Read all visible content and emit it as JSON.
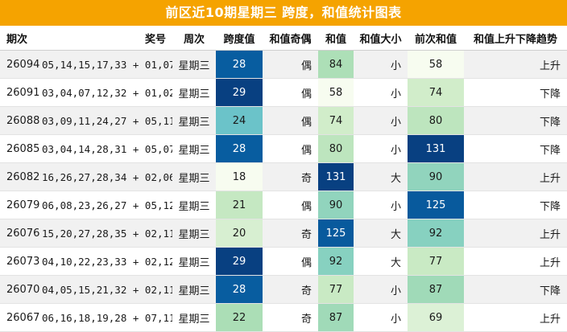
{
  "title": "前区近10期星期三 跨度，和值统计图表",
  "headers": {
    "period": "期次",
    "numbers": "奖号",
    "weekday": "周次",
    "span": "跨度值",
    "parity": "和值奇偶",
    "sum": "和值",
    "size": "和值大小",
    "prev_sum": "前次和值",
    "trend": "和值上升下降趋势"
  },
  "rows": [
    {
      "period": "26094",
      "numbers": "05,14,15,17,33 + 01,07",
      "weekday": "星期三",
      "span": "28",
      "parity": "偶",
      "sum": "84",
      "size": "小",
      "prev_sum": "58",
      "trend": "上升"
    },
    {
      "period": "26091",
      "numbers": "03,04,07,12,32 + 01,02",
      "weekday": "星期三",
      "span": "29",
      "parity": "偶",
      "sum": "58",
      "size": "小",
      "prev_sum": "74",
      "trend": "下降"
    },
    {
      "period": "26088",
      "numbers": "03,09,11,24,27 + 05,11",
      "weekday": "星期三",
      "span": "24",
      "parity": "偶",
      "sum": "74",
      "size": "小",
      "prev_sum": "80",
      "trend": "下降"
    },
    {
      "period": "26085",
      "numbers": "03,04,14,28,31 + 05,07",
      "weekday": "星期三",
      "span": "28",
      "parity": "偶",
      "sum": "80",
      "size": "小",
      "prev_sum": "131",
      "trend": "下降"
    },
    {
      "period": "26082",
      "numbers": "16,26,27,28,34 + 02,06",
      "weekday": "星期三",
      "span": "18",
      "parity": "奇",
      "sum": "131",
      "size": "大",
      "prev_sum": "90",
      "trend": "上升"
    },
    {
      "period": "26079",
      "numbers": "06,08,23,26,27 + 05,12",
      "weekday": "星期三",
      "span": "21",
      "parity": "偶",
      "sum": "90",
      "size": "小",
      "prev_sum": "125",
      "trend": "下降"
    },
    {
      "period": "26076",
      "numbers": "15,20,27,28,35 + 02,11",
      "weekday": "星期三",
      "span": "20",
      "parity": "奇",
      "sum": "125",
      "size": "大",
      "prev_sum": "92",
      "trend": "上升"
    },
    {
      "period": "26073",
      "numbers": "04,10,22,23,33 + 02,12",
      "weekday": "星期三",
      "span": "29",
      "parity": "偶",
      "sum": "92",
      "size": "大",
      "prev_sum": "77",
      "trend": "上升"
    },
    {
      "period": "26070",
      "numbers": "04,05,15,21,32 + 02,11",
      "weekday": "星期三",
      "span": "28",
      "parity": "奇",
      "sum": "77",
      "size": "小",
      "prev_sum": "87",
      "trend": "下降"
    },
    {
      "period": "26067",
      "numbers": "06,16,18,19,28 + 07,11",
      "weekday": "星期三",
      "span": "22",
      "parity": "奇",
      "sum": "87",
      "size": "小",
      "prev_sum": "69",
      "trend": "上升"
    }
  ],
  "colors": {
    "title_bg": "#f5a300",
    "title_text": "#ffffff",
    "heat_low": "#f7fcf0",
    "heat_mid": "#7bccc4",
    "heat_high": "#084081"
  }
}
